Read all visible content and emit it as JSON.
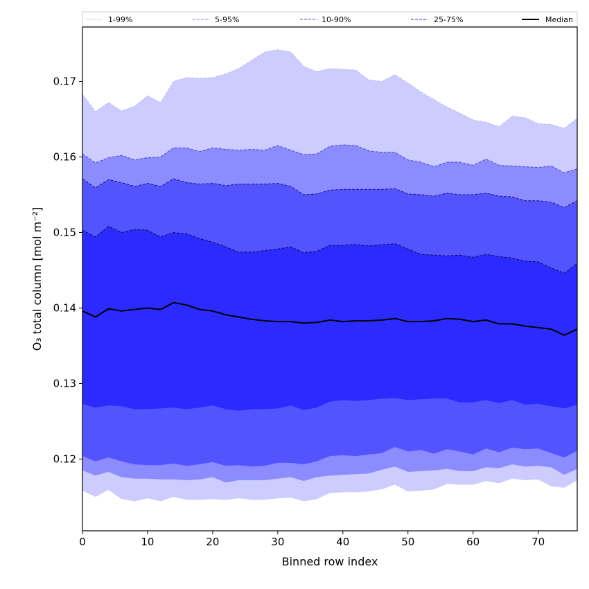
{
  "chart_data": {
    "type": "area",
    "title": "",
    "xlabel": "Binned row index",
    "ylabel": "O₃ total column [mol m⁻²]",
    "xlim": [
      0,
      76
    ],
    "ylim": [
      0.1105,
      0.1772
    ],
    "grid": false,
    "legend_position": "top",
    "x_ticks": [
      0,
      10,
      20,
      30,
      40,
      50,
      60,
      70
    ],
    "x_tick_labels": [
      "0",
      "10",
      "20",
      "30",
      "40",
      "50",
      "60",
      "70"
    ],
    "y_ticks": [
      0.12,
      0.13,
      0.14,
      0.15,
      0.16,
      0.17
    ],
    "y_tick_labels": [
      "0.12",
      "0.13",
      "0.14",
      "0.15",
      "0.16",
      "0.17"
    ],
    "x": [
      0,
      2,
      4,
      6,
      8,
      10,
      12,
      14,
      16,
      18,
      20,
      22,
      24,
      26,
      28,
      30,
      32,
      34,
      36,
      38,
      40,
      42,
      44,
      46,
      48,
      50,
      52,
      54,
      56,
      58,
      60,
      62,
      64,
      66,
      68,
      70,
      72,
      74,
      76
    ],
    "bands": [
      {
        "name": "1-99%",
        "fill": "#ccccff",
        "line": "#b3b3ff",
        "lower": [
          0.1158,
          0.115,
          0.1159,
          0.1147,
          0.1144,
          0.1148,
          0.1144,
          0.115,
          0.1146,
          0.1146,
          0.1147,
          0.1146,
          0.1148,
          0.1146,
          0.1146,
          0.1148,
          0.1149,
          0.1144,
          0.1147,
          0.1155,
          0.1156,
          0.1156,
          0.1157,
          0.116,
          0.1166,
          0.1157,
          0.1158,
          0.116,
          0.1167,
          0.1166,
          0.1166,
          0.1171,
          0.1168,
          0.1174,
          0.1172,
          0.1173,
          0.1164,
          0.1162,
          0.1172
        ],
        "upper": [
          0.1683,
          0.166,
          0.1672,
          0.1661,
          0.1667,
          0.1681,
          0.1672,
          0.17,
          0.1705,
          0.1704,
          0.1705,
          0.171,
          0.1717,
          0.1728,
          0.1739,
          0.1742,
          0.1739,
          0.172,
          0.1713,
          0.1717,
          0.1716,
          0.1715,
          0.1702,
          0.17,
          0.1709,
          0.1698,
          0.1686,
          0.1676,
          0.1666,
          0.1658,
          0.1649,
          0.1646,
          0.164,
          0.1654,
          0.1652,
          0.1644,
          0.1643,
          0.1638,
          0.1651
        ]
      },
      {
        "name": "5-95%",
        "fill": "#8c8cff",
        "line": "#4d4dd9",
        "lower": [
          0.1185,
          0.1178,
          0.1183,
          0.1176,
          0.1174,
          0.1174,
          0.1173,
          0.1173,
          0.1172,
          0.1173,
          0.1176,
          0.1169,
          0.1172,
          0.1172,
          0.1172,
          0.1174,
          0.1176,
          0.1171,
          0.1176,
          0.1178,
          0.1179,
          0.118,
          0.1181,
          0.1186,
          0.119,
          0.1183,
          0.1184,
          0.1185,
          0.1187,
          0.1184,
          0.1184,
          0.1189,
          0.1188,
          0.1193,
          0.119,
          0.1191,
          0.1189,
          0.1179,
          0.1187
        ],
        "upper": [
          0.1604,
          0.1592,
          0.1599,
          0.1602,
          0.1596,
          0.1599,
          0.16,
          0.1612,
          0.1612,
          0.1607,
          0.1612,
          0.161,
          0.1609,
          0.161,
          0.1609,
          0.1615,
          0.1609,
          0.1603,
          0.1604,
          0.1614,
          0.1616,
          0.1615,
          0.1608,
          0.1606,
          0.1606,
          0.1596,
          0.1593,
          0.1587,
          0.1593,
          0.1593,
          0.1589,
          0.1597,
          0.1589,
          0.1588,
          0.1587,
          0.1586,
          0.1588,
          0.1579,
          0.1584
        ]
      },
      {
        "name": "10-90%",
        "fill": "#5454ff",
        "line": "#1a1a8c",
        "lower": [
          0.1204,
          0.1197,
          0.1202,
          0.1197,
          0.1193,
          0.1192,
          0.1192,
          0.1194,
          0.1191,
          0.1193,
          0.1196,
          0.1191,
          0.1192,
          0.119,
          0.1191,
          0.1195,
          0.1195,
          0.1193,
          0.1197,
          0.1204,
          0.1205,
          0.1204,
          0.1206,
          0.1208,
          0.1216,
          0.121,
          0.1212,
          0.1207,
          0.1213,
          0.121,
          0.1206,
          0.1214,
          0.1209,
          0.1215,
          0.1213,
          0.1214,
          0.1208,
          0.1202,
          0.1211
        ],
        "upper": [
          0.1571,
          0.1559,
          0.157,
          0.1566,
          0.1561,
          0.1565,
          0.1561,
          0.1571,
          0.1566,
          0.1564,
          0.1565,
          0.1562,
          0.1564,
          0.1564,
          0.1564,
          0.1565,
          0.1561,
          0.155,
          0.1551,
          0.1556,
          0.1557,
          0.1557,
          0.1557,
          0.1557,
          0.1558,
          0.1551,
          0.155,
          0.1548,
          0.1552,
          0.155,
          0.155,
          0.1552,
          0.1548,
          0.1547,
          0.1542,
          0.1542,
          0.154,
          0.1533,
          0.1542
        ]
      },
      {
        "name": "25-75%",
        "fill": "#2b2bff",
        "line": "#0d0d66",
        "lower": [
          0.1273,
          0.1268,
          0.1271,
          0.127,
          0.1266,
          0.1266,
          0.1267,
          0.1268,
          0.1266,
          0.1268,
          0.1271,
          0.1266,
          0.1264,
          0.1266,
          0.1266,
          0.1267,
          0.1271,
          0.1265,
          0.1268,
          0.1276,
          0.1278,
          0.1277,
          0.1278,
          0.128,
          0.1281,
          0.1278,
          0.1279,
          0.128,
          0.128,
          0.1275,
          0.1275,
          0.1278,
          0.1274,
          0.1278,
          0.1272,
          0.1273,
          0.127,
          0.1267,
          0.1272
        ],
        "upper": [
          0.1503,
          0.1494,
          0.1508,
          0.15,
          0.1504,
          0.1503,
          0.1494,
          0.15,
          0.1498,
          0.1492,
          0.1487,
          0.1481,
          0.1474,
          0.1474,
          0.1476,
          0.1478,
          0.1481,
          0.1473,
          0.1475,
          0.1483,
          0.1483,
          0.1484,
          0.1482,
          0.1484,
          0.1485,
          0.1478,
          0.1471,
          0.147,
          0.1469,
          0.147,
          0.1467,
          0.1471,
          0.1468,
          0.1466,
          0.1462,
          0.1461,
          0.1453,
          0.1446,
          0.1459
        ]
      }
    ],
    "median": {
      "name": "Median",
      "color": "#000000",
      "values": [
        0.1396,
        0.1388,
        0.1399,
        0.1396,
        0.1398,
        0.14,
        0.1398,
        0.1407,
        0.1404,
        0.1398,
        0.1396,
        0.1391,
        0.1388,
        0.1385,
        0.1383,
        0.1382,
        0.1382,
        0.138,
        0.1381,
        0.1384,
        0.1382,
        0.1383,
        0.1383,
        0.1384,
        0.1386,
        0.1382,
        0.1382,
        0.1383,
        0.1386,
        0.1385,
        0.1382,
        0.1384,
        0.1379,
        0.1379,
        0.1376,
        0.1374,
        0.1372,
        0.1364,
        0.1372
      ]
    },
    "legend": [
      {
        "label": "1-99%",
        "color": "#ccccff",
        "style": "dashed"
      },
      {
        "label": "5-95%",
        "color": "#9a9aff",
        "style": "dashed"
      },
      {
        "label": "10-90%",
        "color": "#6a6aff",
        "style": "dashed"
      },
      {
        "label": "25-75%",
        "color": "#5050ff",
        "style": "dashed"
      },
      {
        "label": "Median",
        "color": "#000000",
        "style": "solid"
      }
    ]
  }
}
